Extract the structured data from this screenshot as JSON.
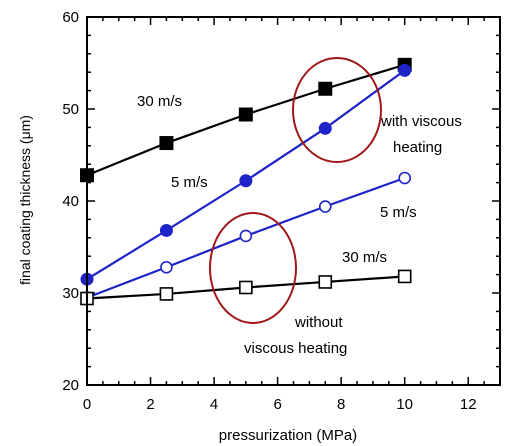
{
  "chart_data": {
    "type": "line",
    "xlabel": "pressurization (MPa)",
    "ylabel": "final coating thickness (μm)",
    "xlim": [
      0,
      13
    ],
    "ylim": [
      20,
      60
    ],
    "xticks": [
      0,
      2,
      4,
      6,
      8,
      10,
      12
    ],
    "yticks": [
      20,
      30,
      40,
      50,
      60
    ],
    "grid": false,
    "series": [
      {
        "group": "with viscous heating",
        "speed": "30 m/s",
        "marker": "filled-square",
        "color": "#000000",
        "x": [
          0,
          2.5,
          5,
          7.5,
          10
        ],
        "y": [
          42.8,
          46.3,
          49.4,
          52.2,
          54.8
        ]
      },
      {
        "group": "with viscous heating",
        "speed": "5 m/s",
        "marker": "filled-circle",
        "color": "#1f24c8",
        "x": [
          0,
          2.5,
          5,
          7.5,
          10
        ],
        "y": [
          31.5,
          36.8,
          42.2,
          47.9,
          54.2
        ]
      },
      {
        "group": "without viscous heating",
        "speed": "5 m/s",
        "marker": "open-circle",
        "color": "#1f24c8",
        "x": [
          0,
          2.5,
          5,
          7.5,
          10
        ],
        "y": [
          29.5,
          32.8,
          36.2,
          39.4,
          42.5
        ]
      },
      {
        "group": "without viscous heating",
        "speed": "30 m/s",
        "marker": "open-square",
        "color": "#000000",
        "x": [
          0,
          2.5,
          5,
          7.5,
          10
        ],
        "y": [
          29.4,
          29.9,
          30.6,
          31.2,
          31.8
        ]
      }
    ],
    "annotations": {
      "label_30_top": "30 m/s",
      "label_5_top": "5 m/s",
      "with_line1": "with viscous",
      "with_line2": "heating",
      "label_5_bottom": "5 m/s",
      "label_30_bottom": "30 m/s",
      "without_line1": "without",
      "without_line2": "viscous heating"
    },
    "colors": {
      "ellipse": "#a01818",
      "blue": "#1f24c8",
      "black": "#000000"
    }
  }
}
